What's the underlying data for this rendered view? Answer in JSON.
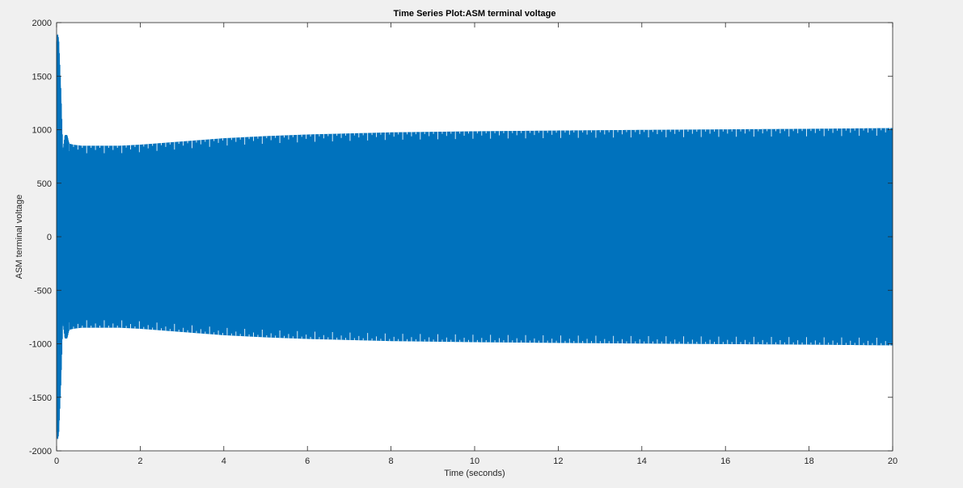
{
  "chart_data": {
    "type": "line",
    "title": "Time Series Plot:ASM terminal voltage",
    "xlabel": "Time (seconds)",
    "ylabel": "ASM terminal voltage",
    "xlim": [
      0,
      20
    ],
    "ylim": [
      -2000,
      2000
    ],
    "xticks": [
      0,
      2,
      4,
      6,
      8,
      10,
      12,
      14,
      16,
      18,
      20
    ],
    "yticks": [
      -2000,
      -1500,
      -1000,
      -500,
      0,
      500,
      1000,
      1500,
      2000
    ],
    "grid": false,
    "series": [
      {
        "color": "#0072bd",
        "envelope_time": [
          0,
          0.02,
          0.05,
          0.1,
          0.15,
          0.2,
          0.25,
          0.3,
          0.4,
          0.6,
          1,
          1.5,
          2,
          3,
          4,
          5,
          6,
          7,
          8,
          10,
          12,
          14,
          16,
          18,
          20
        ],
        "envelope_upper": [
          1800,
          1900,
          1850,
          1400,
          800,
          950,
          950,
          870,
          860,
          850,
          850,
          850,
          860,
          890,
          920,
          940,
          955,
          965,
          975,
          985,
          992,
          998,
          1003,
          1008,
          1015
        ],
        "envelope_lower": [
          -1800,
          -1900,
          -1850,
          -1400,
          -800,
          -950,
          -950,
          -870,
          -860,
          -850,
          -850,
          -850,
          -860,
          -890,
          -920,
          -940,
          -955,
          -965,
          -975,
          -985,
          -992,
          -998,
          -1003,
          -1008,
          -1015
        ]
      }
    ]
  }
}
